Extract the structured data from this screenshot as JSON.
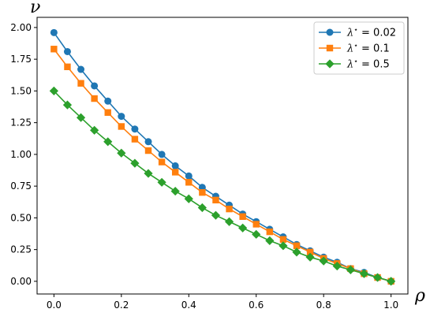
{
  "chart_data": {
    "type": "line",
    "title": "",
    "xlabel": "ρ",
    "ylabel": "ν",
    "xlim": [
      -0.05,
      1.05
    ],
    "ylim": [
      -0.1,
      2.08
    ],
    "xticks": [
      0.0,
      0.2,
      0.4,
      0.6,
      0.8,
      1.0
    ],
    "yticks": [
      0.0,
      0.25,
      0.5,
      0.75,
      1.0,
      1.25,
      1.5,
      1.75,
      2.0
    ],
    "xtick_labels": [
      "0.0",
      "0.2",
      "0.4",
      "0.6",
      "0.8",
      "1.0"
    ],
    "ytick_labels": [
      "0.00",
      "0.25",
      "0.50",
      "0.75",
      "1.00",
      "1.25",
      "1.50",
      "1.75",
      "2.00"
    ],
    "grid": false,
    "legend_position": "top-right",
    "x": [
      0.0,
      0.04,
      0.08,
      0.12,
      0.16,
      0.2,
      0.24,
      0.28,
      0.32,
      0.36,
      0.4,
      0.44,
      0.48,
      0.52,
      0.56,
      0.6,
      0.64,
      0.68,
      0.72,
      0.76,
      0.8,
      0.84,
      0.88,
      0.92,
      0.96,
      1.0
    ],
    "series": [
      {
        "name": "λ* = 0.02",
        "label_main": "λ",
        "label_sup": "⋆",
        "label_value": " = 0.02",
        "color": "#1f77b4",
        "marker": "circle",
        "values": [
          1.96,
          1.81,
          1.67,
          1.54,
          1.42,
          1.3,
          1.2,
          1.1,
          1.0,
          0.91,
          0.83,
          0.74,
          0.67,
          0.6,
          0.53,
          0.47,
          0.41,
          0.35,
          0.29,
          0.24,
          0.19,
          0.15,
          0.1,
          0.07,
          0.03,
          0.0
        ]
      },
      {
        "name": "λ* = 0.1",
        "label_main": "λ",
        "label_sup": "⋆",
        "label_value": " = 0.1",
        "color": "#ff7f0e",
        "marker": "square",
        "values": [
          1.83,
          1.69,
          1.56,
          1.44,
          1.33,
          1.22,
          1.12,
          1.03,
          0.94,
          0.86,
          0.78,
          0.7,
          0.64,
          0.57,
          0.51,
          0.45,
          0.39,
          0.33,
          0.28,
          0.23,
          0.18,
          0.14,
          0.1,
          0.06,
          0.03,
          0.0
        ]
      },
      {
        "name": "λ* = 0.5",
        "label_main": "λ",
        "label_sup": "⋆",
        "label_value": " = 0.5",
        "color": "#2ca02c",
        "marker": "diamond",
        "values": [
          1.5,
          1.39,
          1.29,
          1.19,
          1.1,
          1.01,
          0.93,
          0.85,
          0.78,
          0.71,
          0.65,
          0.58,
          0.52,
          0.47,
          0.42,
          0.37,
          0.32,
          0.28,
          0.23,
          0.19,
          0.16,
          0.12,
          0.09,
          0.06,
          0.03,
          0.0
        ]
      }
    ]
  }
}
